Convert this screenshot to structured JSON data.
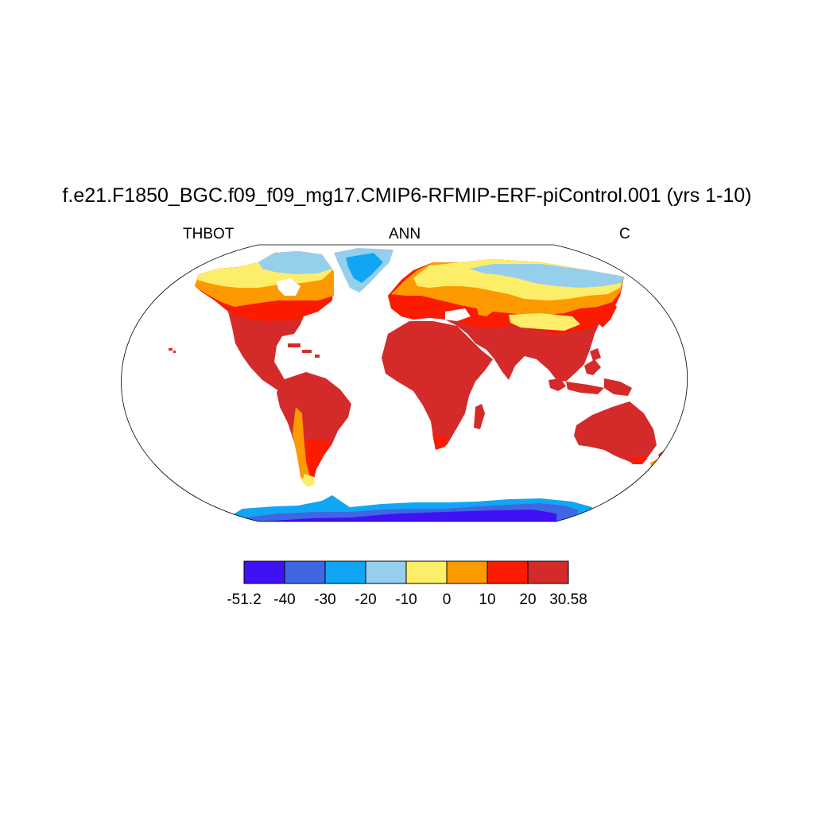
{
  "title": "f.e21.F1850_BGC.f09_f09_mg17.CMIP6-RFMIP-ERF-piControl.001 (yrs 1-10)",
  "left_label": "THBOT",
  "center_label": "ANN",
  "right_label": "C",
  "colorbar": {
    "colors": [
      "#3f12f6",
      "#4067e2",
      "#10a6f5",
      "#96cfec",
      "#fdee6a",
      "#fd9a00",
      "#fa1b00",
      "#d42b2a"
    ],
    "tick_labels": [
      "-51.2",
      "-40",
      "-30",
      "-20",
      "-10",
      "0",
      "10",
      "20",
      "30.58"
    ]
  }
}
